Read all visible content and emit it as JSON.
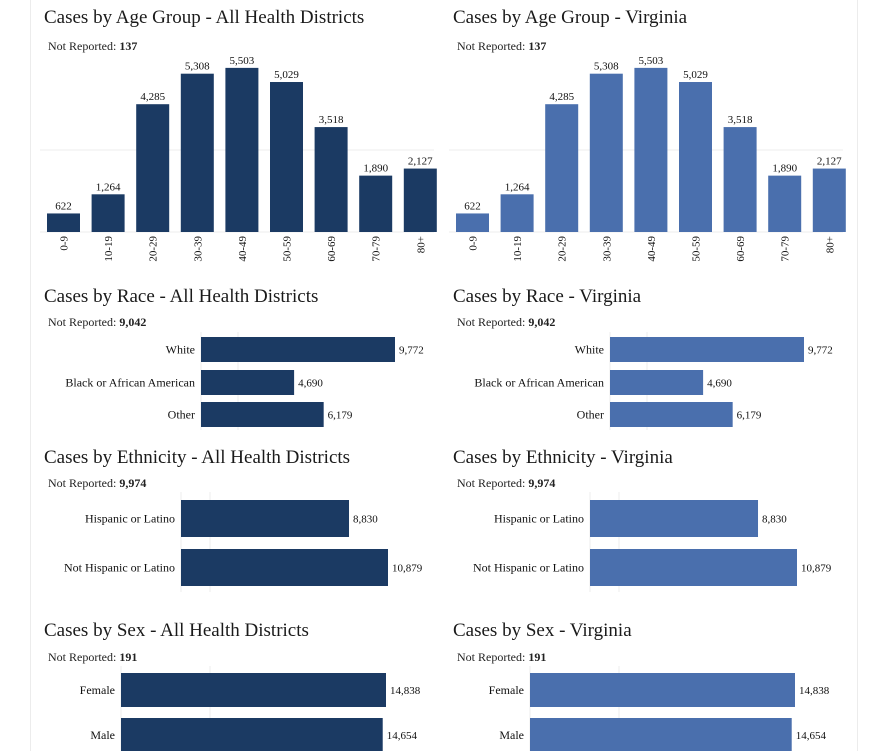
{
  "colors": {
    "districts": "#1b3a63",
    "virginia": "#4a6fad"
  },
  "chart_data": [
    {
      "id": "age-districts",
      "type": "bar",
      "orientation": "vertical",
      "title": "Cases by Age Group - All Health Districts",
      "not_reported_label": "Not Reported:",
      "not_reported_value": "137",
      "color_key": "districts",
      "categories": [
        "0-9",
        "10-19",
        "20-29",
        "30-39",
        "40-49",
        "50-59",
        "60-69",
        "70-79",
        "80+"
      ],
      "values": [
        622,
        1264,
        4285,
        5308,
        5503,
        5029,
        3518,
        1890,
        2127
      ],
      "value_labels": [
        "622",
        "1,264",
        "4,285",
        "5,308",
        "5,503",
        "5,029",
        "3,518",
        "1,890",
        "2,127"
      ],
      "ylim": [
        0,
        5700
      ]
    },
    {
      "id": "age-virginia",
      "type": "bar",
      "orientation": "vertical",
      "title": "Cases by Age Group - Virginia",
      "not_reported_label": "Not Reported:",
      "not_reported_value": "137",
      "color_key": "virginia",
      "categories": [
        "0-9",
        "10-19",
        "20-29",
        "30-39",
        "40-49",
        "50-59",
        "60-69",
        "70-79",
        "80+"
      ],
      "values": [
        622,
        1264,
        4285,
        5308,
        5503,
        5029,
        3518,
        1890,
        2127
      ],
      "value_labels": [
        "622",
        "1,264",
        "4,285",
        "5,308",
        "5,503",
        "5,029",
        "3,518",
        "1,890",
        "2,127"
      ],
      "ylim": [
        0,
        5700
      ]
    },
    {
      "id": "race-districts",
      "type": "bar",
      "orientation": "horizontal",
      "title": "Cases by Race - All Health Districts",
      "not_reported_label": "Not Reported:",
      "not_reported_value": "9,042",
      "color_key": "districts",
      "categories": [
        "White",
        "Black or African American",
        "Other"
      ],
      "values": [
        9772,
        4690,
        6179
      ],
      "value_labels": [
        "9,772",
        "4,690",
        "6,179"
      ],
      "xlim": [
        0,
        9772
      ]
    },
    {
      "id": "race-virginia",
      "type": "bar",
      "orientation": "horizontal",
      "title": "Cases by Race - Virginia",
      "not_reported_label": "Not Reported:",
      "not_reported_value": "9,042",
      "color_key": "virginia",
      "categories": [
        "White",
        "Black or African American",
        "Other"
      ],
      "values": [
        9772,
        4690,
        6179
      ],
      "value_labels": [
        "9,772",
        "4,690",
        "6,179"
      ],
      "xlim": [
        0,
        9772
      ]
    },
    {
      "id": "ethnicity-districts",
      "type": "bar",
      "orientation": "horizontal",
      "title": "Cases by Ethnicity - All Health Districts",
      "not_reported_label": "Not Reported:",
      "not_reported_value": "9,974",
      "color_key": "districts",
      "categories": [
        "Hispanic or Latino",
        "Not Hispanic or Latino"
      ],
      "values": [
        8830,
        10879
      ],
      "value_labels": [
        "8,830",
        "10,879"
      ],
      "xlim": [
        0,
        10879
      ]
    },
    {
      "id": "ethnicity-virginia",
      "type": "bar",
      "orientation": "horizontal",
      "title": "Cases by Ethnicity - Virginia",
      "not_reported_label": "Not Reported:",
      "not_reported_value": "9,974",
      "color_key": "virginia",
      "categories": [
        "Hispanic or Latino",
        "Not Hispanic or Latino"
      ],
      "values": [
        8830,
        10879
      ],
      "value_labels": [
        "8,830",
        "10,879"
      ],
      "xlim": [
        0,
        10879
      ]
    },
    {
      "id": "sex-districts",
      "type": "bar",
      "orientation": "horizontal",
      "title": "Cases by Sex - All Health Districts",
      "not_reported_label": "Not Reported:",
      "not_reported_value": "191",
      "color_key": "districts",
      "categories": [
        "Female",
        "Male"
      ],
      "values": [
        14838,
        14654
      ],
      "value_labels": [
        "14,838",
        "14,654"
      ],
      "xlim": [
        0,
        14838
      ]
    },
    {
      "id": "sex-virginia",
      "type": "bar",
      "orientation": "horizontal",
      "title": "Cases by Sex - Virginia",
      "not_reported_label": "Not Reported:",
      "not_reported_value": "191",
      "color_key": "virginia",
      "categories": [
        "Female",
        "Male"
      ],
      "values": [
        14838,
        14654
      ],
      "value_labels": [
        "14,838",
        "14,654"
      ],
      "xlim": [
        0,
        14838
      ]
    }
  ]
}
